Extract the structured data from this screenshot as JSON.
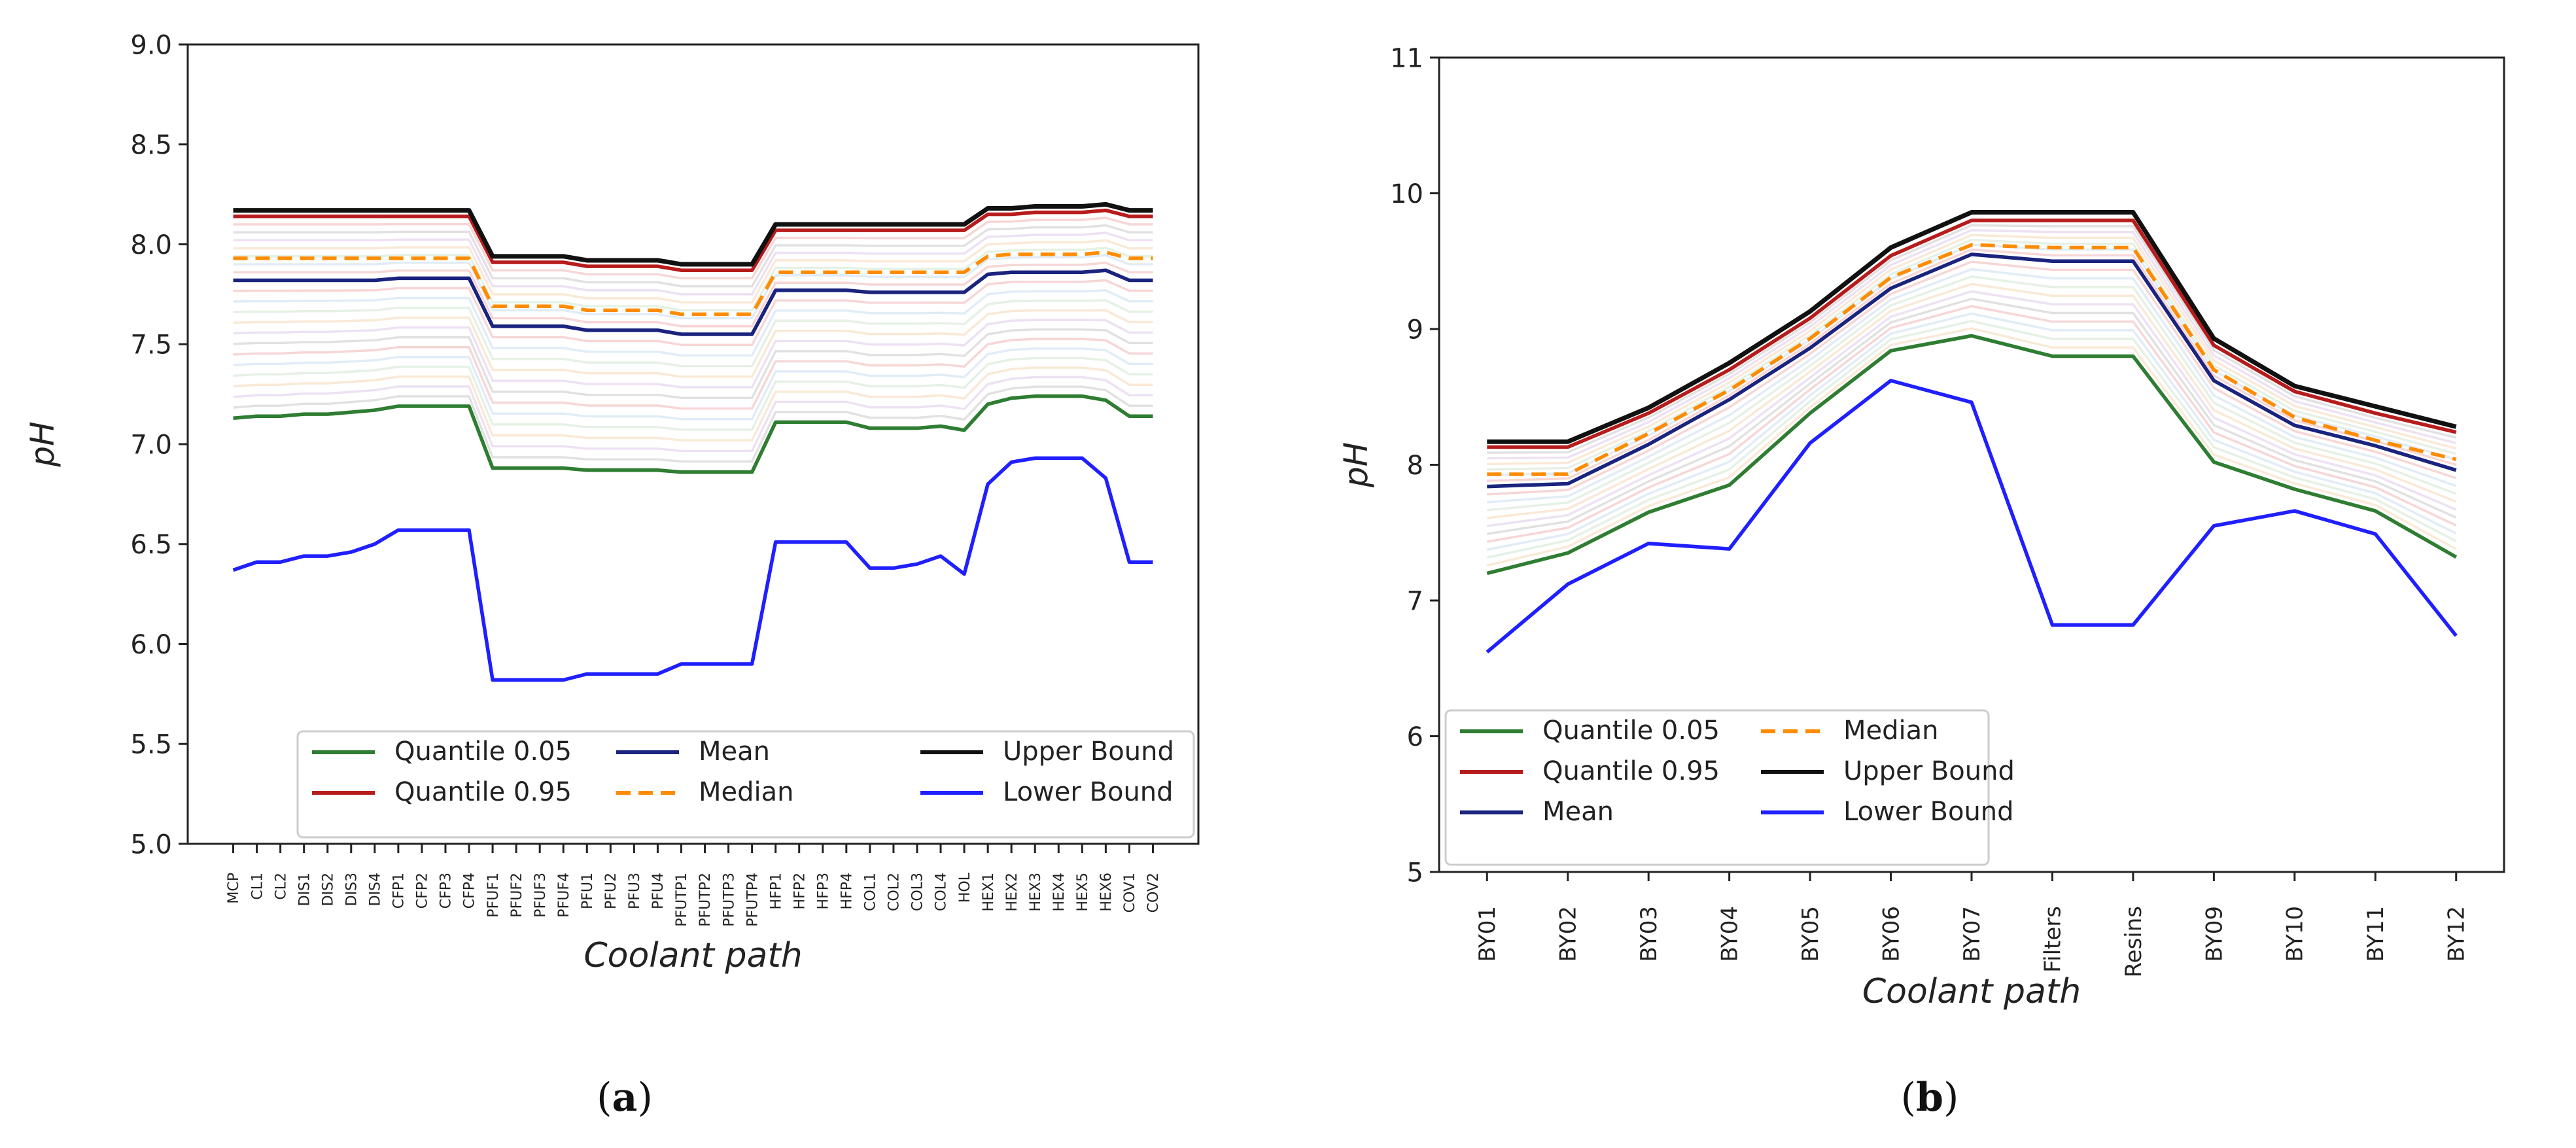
{
  "chart_data": [
    {
      "type": "line",
      "panel_label": "a",
      "caption": "(a)",
      "xlabel": "Coolant path",
      "ylabel": "pH",
      "ylim": [
        5.0,
        9.0
      ],
      "yticks": [
        "5.0",
        "5.5",
        "6.0",
        "6.5",
        "7.0",
        "7.5",
        "8.0",
        "8.5",
        "9.0"
      ],
      "categories": [
        "MCP",
        "CL1",
        "CL2",
        "DIS1",
        "DIS2",
        "DIS3",
        "DIS4",
        "CFP1",
        "CFP2",
        "CFP3",
        "CFP4",
        "PFUF1",
        "PFUF2",
        "PFUF3",
        "PFUF4",
        "PFU1",
        "PFU2",
        "PFU3",
        "PFU4",
        "PFUTP1",
        "PFUTP2",
        "PFUTP3",
        "PFUTP4",
        "HFP1",
        "HFP2",
        "HFP3",
        "HFP4",
        "COL1",
        "COL2",
        "COL3",
        "COL4",
        "HOL",
        "HEX1",
        "HEX2",
        "HEX3",
        "HEX4",
        "HEX5",
        "HEX6",
        "COV1",
        "COV2"
      ],
      "series": [
        {
          "name": "Quantile 0.05",
          "color": "#2e7d32",
          "dash": "",
          "values": [
            7.13,
            7.14,
            7.14,
            7.15,
            7.15,
            7.16,
            7.17,
            7.19,
            7.19,
            7.19,
            7.19,
            6.88,
            6.88,
            6.88,
            6.88,
            6.87,
            6.87,
            6.87,
            6.87,
            6.86,
            6.86,
            6.86,
            6.86,
            7.11,
            7.11,
            7.11,
            7.11,
            7.08,
            7.08,
            7.08,
            7.09,
            7.07,
            7.2,
            7.23,
            7.24,
            7.24,
            7.24,
            7.22,
            7.14,
            7.14
          ]
        },
        {
          "name": "Quantile 0.95",
          "color": "#b71c1c",
          "dash": "",
          "values": [
            8.14,
            8.14,
            8.14,
            8.14,
            8.14,
            8.14,
            8.14,
            8.14,
            8.14,
            8.14,
            8.14,
            7.91,
            7.91,
            7.91,
            7.91,
            7.89,
            7.89,
            7.89,
            7.89,
            7.87,
            7.87,
            7.87,
            7.87,
            8.07,
            8.07,
            8.07,
            8.07,
            8.07,
            8.07,
            8.07,
            8.07,
            8.07,
            8.15,
            8.15,
            8.16,
            8.16,
            8.16,
            8.17,
            8.14,
            8.14
          ]
        },
        {
          "name": "Mean",
          "color": "#1a237e",
          "dash": "",
          "values": [
            7.82,
            7.82,
            7.82,
            7.82,
            7.82,
            7.82,
            7.82,
            7.83,
            7.83,
            7.83,
            7.83,
            7.59,
            7.59,
            7.59,
            7.59,
            7.57,
            7.57,
            7.57,
            7.57,
            7.55,
            7.55,
            7.55,
            7.55,
            7.77,
            7.77,
            7.77,
            7.77,
            7.76,
            7.76,
            7.76,
            7.76,
            7.76,
            7.85,
            7.86,
            7.86,
            7.86,
            7.86,
            7.87,
            7.82,
            7.82
          ]
        },
        {
          "name": "Median",
          "color": "#ff8c00",
          "dash": "22,12",
          "values": [
            7.93,
            7.93,
            7.93,
            7.93,
            7.93,
            7.93,
            7.93,
            7.93,
            7.93,
            7.93,
            7.93,
            7.69,
            7.69,
            7.69,
            7.69,
            7.67,
            7.67,
            7.67,
            7.67,
            7.65,
            7.65,
            7.65,
            7.65,
            7.86,
            7.86,
            7.86,
            7.86,
            7.86,
            7.86,
            7.86,
            7.86,
            7.86,
            7.94,
            7.95,
            7.95,
            7.95,
            7.95,
            7.96,
            7.93,
            7.93
          ]
        },
        {
          "name": "Upper Bound",
          "color": "#111111",
          "dash": "",
          "values": [
            8.17,
            8.17,
            8.17,
            8.17,
            8.17,
            8.17,
            8.17,
            8.17,
            8.17,
            8.17,
            8.17,
            7.94,
            7.94,
            7.94,
            7.94,
            7.92,
            7.92,
            7.92,
            7.92,
            7.9,
            7.9,
            7.9,
            7.9,
            8.1,
            8.1,
            8.1,
            8.1,
            8.1,
            8.1,
            8.1,
            8.1,
            8.1,
            8.18,
            8.18,
            8.19,
            8.19,
            8.19,
            8.2,
            8.17,
            8.17
          ]
        },
        {
          "name": "Lower Bound",
          "color": "#1f1fff",
          "dash": "",
          "values": [
            6.37,
            6.41,
            6.41,
            6.44,
            6.44,
            6.46,
            6.5,
            6.57,
            6.57,
            6.57,
            6.57,
            5.82,
            5.82,
            5.82,
            5.82,
            5.85,
            5.85,
            5.85,
            5.85,
            5.9,
            5.9,
            5.9,
            5.9,
            6.51,
            6.51,
            6.51,
            6.51,
            6.38,
            6.38,
            6.4,
            6.44,
            6.35,
            6.8,
            6.91,
            6.93,
            6.93,
            6.93,
            6.83,
            6.41,
            6.41
          ]
        }
      ],
      "legend": {
        "location": "lower-right",
        "columns": 3,
        "entries": [
          "Quantile 0.05",
          "Mean",
          "Upper Bound",
          "Quantile 0.95",
          "Median",
          "Lower Bound"
        ]
      },
      "grid": false
    },
    {
      "type": "line",
      "panel_label": "b",
      "caption": "(b)",
      "xlabel": "Coolant path",
      "ylabel": "pH",
      "ylim": [
        5,
        11
      ],
      "yticks": [
        "5",
        "6",
        "7",
        "8",
        "9",
        "10",
        "11"
      ],
      "categories": [
        "BY01",
        "BY02",
        "BY03",
        "BY04",
        "BY05",
        "BY06",
        "BY07",
        "Filters",
        "Resins",
        "BY09",
        "BY10",
        "BY11",
        "BY12"
      ],
      "series": [
        {
          "name": "Quantile 0.05",
          "color": "#2e7d32",
          "dash": "",
          "values": [
            7.2,
            7.35,
            7.65,
            7.85,
            8.38,
            8.84,
            8.95,
            8.8,
            8.8,
            8.02,
            7.82,
            7.66,
            7.32
          ]
        },
        {
          "name": "Quantile 0.95",
          "color": "#b71c1c",
          "dash": "",
          "values": [
            8.13,
            8.13,
            8.38,
            8.7,
            9.08,
            9.54,
            9.8,
            9.8,
            9.8,
            8.88,
            8.54,
            8.38,
            8.24
          ]
        },
        {
          "name": "Mean",
          "color": "#1a237e",
          "dash": "",
          "values": [
            7.84,
            7.86,
            8.15,
            8.48,
            8.86,
            9.3,
            9.55,
            9.5,
            9.5,
            8.62,
            8.29,
            8.14,
            7.96
          ]
        },
        {
          "name": "Median",
          "color": "#ff8c00",
          "dash": "22,12",
          "values": [
            7.93,
            7.93,
            8.23,
            8.55,
            8.93,
            9.38,
            9.62,
            9.6,
            9.6,
            8.7,
            8.35,
            8.18,
            8.04
          ]
        },
        {
          "name": "Upper Bound",
          "color": "#111111",
          "dash": "",
          "values": [
            8.17,
            8.17,
            8.42,
            8.75,
            9.13,
            9.6,
            9.86,
            9.86,
            9.86,
            8.93,
            8.58,
            8.43,
            8.28
          ]
        },
        {
          "name": "Lower Bound",
          "color": "#1f1fff",
          "dash": "",
          "values": [
            6.62,
            7.12,
            7.42,
            7.38,
            8.16,
            8.62,
            8.46,
            6.82,
            6.82,
            7.55,
            7.66,
            7.49,
            6.74
          ]
        }
      ],
      "legend": {
        "location": "lower-left",
        "columns": 2,
        "entries": [
          "Quantile 0.05",
          "Median",
          "Quantile 0.95",
          "Upper Bound",
          "Mean",
          "Lower Bound"
        ]
      },
      "grid": false
    }
  ]
}
